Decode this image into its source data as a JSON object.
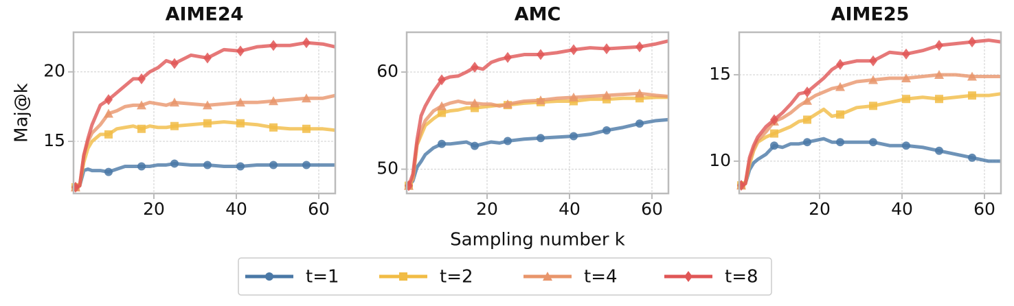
{
  "chart_data": [
    {
      "type": "line",
      "title": "AIME24",
      "ylabel": "Maj@k",
      "x": [
        1,
        2,
        3,
        4,
        5,
        7,
        9,
        11,
        13,
        15,
        17,
        19,
        21,
        23,
        25,
        29,
        33,
        37,
        41,
        45,
        49,
        53,
        57,
        61,
        64
      ],
      "xlim": [
        0.5,
        64
      ],
      "xticks": [
        20,
        40,
        60
      ],
      "ylim": [
        11.25,
        22.85
      ],
      "yticks": [
        15,
        20
      ],
      "grid": true,
      "series": [
        {
          "name": "t=1",
          "color": "#4a78a6",
          "values": [
            11.7,
            11.8,
            12.9,
            13.0,
            12.9,
            12.9,
            12.8,
            13.0,
            13.2,
            13.2,
            13.2,
            13.2,
            13.3,
            13.3,
            13.4,
            13.3,
            13.3,
            13.2,
            13.2,
            13.3,
            13.3,
            13.3,
            13.3,
            13.3,
            13.3
          ]
        },
        {
          "name": "t=2",
          "color": "#f1bc45",
          "values": [
            11.7,
            11.8,
            13.5,
            14.5,
            15.0,
            15.5,
            15.5,
            15.9,
            16.0,
            16.1,
            15.9,
            16.1,
            16.0,
            16.0,
            16.1,
            16.2,
            16.3,
            16.4,
            16.3,
            16.2,
            16.0,
            15.9,
            15.9,
            15.9,
            15.8
          ]
        },
        {
          "name": "t=4",
          "color": "#e8956b",
          "values": [
            11.7,
            11.8,
            14.0,
            15.0,
            15.6,
            16.2,
            17.0,
            17.2,
            17.5,
            17.6,
            17.6,
            17.8,
            17.7,
            17.6,
            17.8,
            17.7,
            17.6,
            17.7,
            17.8,
            17.8,
            17.9,
            18.0,
            18.1,
            18.1,
            18.3
          ]
        },
        {
          "name": "t=8",
          "color": "#e05656",
          "values": [
            11.7,
            11.8,
            14.0,
            15.2,
            16.2,
            17.6,
            18.0,
            18.5,
            19.0,
            19.5,
            19.5,
            20.0,
            20.3,
            20.8,
            20.6,
            21.2,
            21.0,
            21.6,
            21.5,
            21.8,
            21.9,
            21.9,
            22.1,
            22.0,
            21.8
          ]
        }
      ]
    },
    {
      "type": "line",
      "title": "AMC",
      "xlabel": "Sampling number k",
      "x": [
        1,
        2,
        3,
        4,
        5,
        7,
        9,
        11,
        13,
        15,
        17,
        19,
        21,
        23,
        25,
        29,
        33,
        37,
        41,
        45,
        49,
        53,
        57,
        61,
        64
      ],
      "xlim": [
        0.5,
        64
      ],
      "xticks": [
        20,
        40,
        60
      ],
      "ylim": [
        47.5,
        64.1
      ],
      "yticks": [
        50,
        60
      ],
      "grid": true,
      "series": [
        {
          "name": "t=1",
          "color": "#4a78a6",
          "values": [
            48.3,
            48.8,
            50.2,
            50.8,
            51.5,
            52.2,
            52.6,
            52.6,
            52.7,
            52.8,
            52.4,
            52.6,
            52.8,
            52.7,
            52.9,
            53.1,
            53.2,
            53.3,
            53.4,
            53.6,
            54.0,
            54.3,
            54.7,
            55.0,
            55.1
          ]
        },
        {
          "name": "t=2",
          "color": "#f1bc45",
          "values": [
            48.3,
            49.0,
            52.5,
            53.5,
            54.5,
            55.2,
            55.8,
            56.0,
            56.1,
            56.3,
            56.3,
            56.4,
            56.5,
            56.6,
            56.6,
            56.8,
            56.9,
            57.0,
            57.0,
            57.2,
            57.2,
            57.3,
            57.3,
            57.4,
            57.4
          ]
        },
        {
          "name": "t=4",
          "color": "#e8956b",
          "values": [
            48.3,
            49.0,
            52.5,
            54.0,
            55.0,
            56.0,
            56.5,
            56.8,
            57.0,
            56.8,
            56.8,
            56.7,
            56.7,
            56.5,
            56.7,
            57.0,
            57.1,
            57.3,
            57.4,
            57.5,
            57.6,
            57.7,
            57.8,
            57.6,
            57.5
          ]
        },
        {
          "name": "t=8",
          "color": "#e05656",
          "values": [
            48.3,
            49.5,
            53.0,
            55.5,
            56.5,
            58.0,
            59.2,
            59.5,
            59.6,
            60.0,
            60.5,
            60.3,
            61.0,
            61.3,
            61.5,
            61.8,
            61.8,
            62.0,
            62.3,
            62.5,
            62.4,
            62.5,
            62.6,
            62.9,
            63.2
          ]
        }
      ]
    },
    {
      "type": "line",
      "title": "AIME25",
      "x": [
        1,
        2,
        3,
        4,
        5,
        7,
        9,
        11,
        13,
        15,
        17,
        19,
        21,
        23,
        25,
        29,
        33,
        37,
        41,
        45,
        49,
        53,
        57,
        61,
        64
      ],
      "xlim": [
        0.5,
        64
      ],
      "xticks": [
        20,
        40,
        60
      ],
      "ylim": [
        8.13,
        17.46
      ],
      "yticks": [
        10,
        15
      ],
      "grid": true,
      "series": [
        {
          "name": "t=1",
          "color": "#4a78a6",
          "values": [
            8.6,
            8.7,
            9.5,
            9.9,
            10.1,
            10.4,
            10.9,
            10.8,
            11.0,
            11.0,
            11.1,
            11.2,
            11.3,
            11.1,
            11.1,
            11.1,
            11.1,
            10.9,
            10.9,
            10.8,
            10.6,
            10.4,
            10.2,
            10.0,
            10.0
          ]
        },
        {
          "name": "t=2",
          "color": "#f1bc45",
          "values": [
            8.6,
            8.7,
            9.8,
            10.6,
            11.1,
            11.4,
            11.6,
            11.8,
            12.0,
            12.3,
            12.4,
            12.7,
            13.0,
            12.6,
            12.7,
            13.1,
            13.2,
            13.4,
            13.6,
            13.7,
            13.6,
            13.7,
            13.8,
            13.8,
            13.9
          ]
        },
        {
          "name": "t=4",
          "color": "#e8956b",
          "values": [
            8.6,
            8.7,
            10.0,
            10.7,
            11.2,
            11.7,
            12.3,
            12.5,
            12.8,
            13.2,
            13.5,
            13.8,
            14.0,
            14.2,
            14.3,
            14.6,
            14.7,
            14.8,
            14.8,
            14.9,
            15.0,
            15.0,
            14.9,
            14.9,
            14.9
          ]
        },
        {
          "name": "t=8",
          "color": "#e05656",
          "values": [
            8.6,
            8.7,
            10.2,
            10.9,
            11.4,
            12.0,
            12.4,
            12.8,
            13.3,
            13.9,
            14.0,
            14.4,
            14.8,
            15.3,
            15.6,
            15.8,
            15.8,
            16.3,
            16.2,
            16.4,
            16.7,
            16.8,
            16.9,
            17.0,
            16.9
          ]
        }
      ]
    }
  ]
}
